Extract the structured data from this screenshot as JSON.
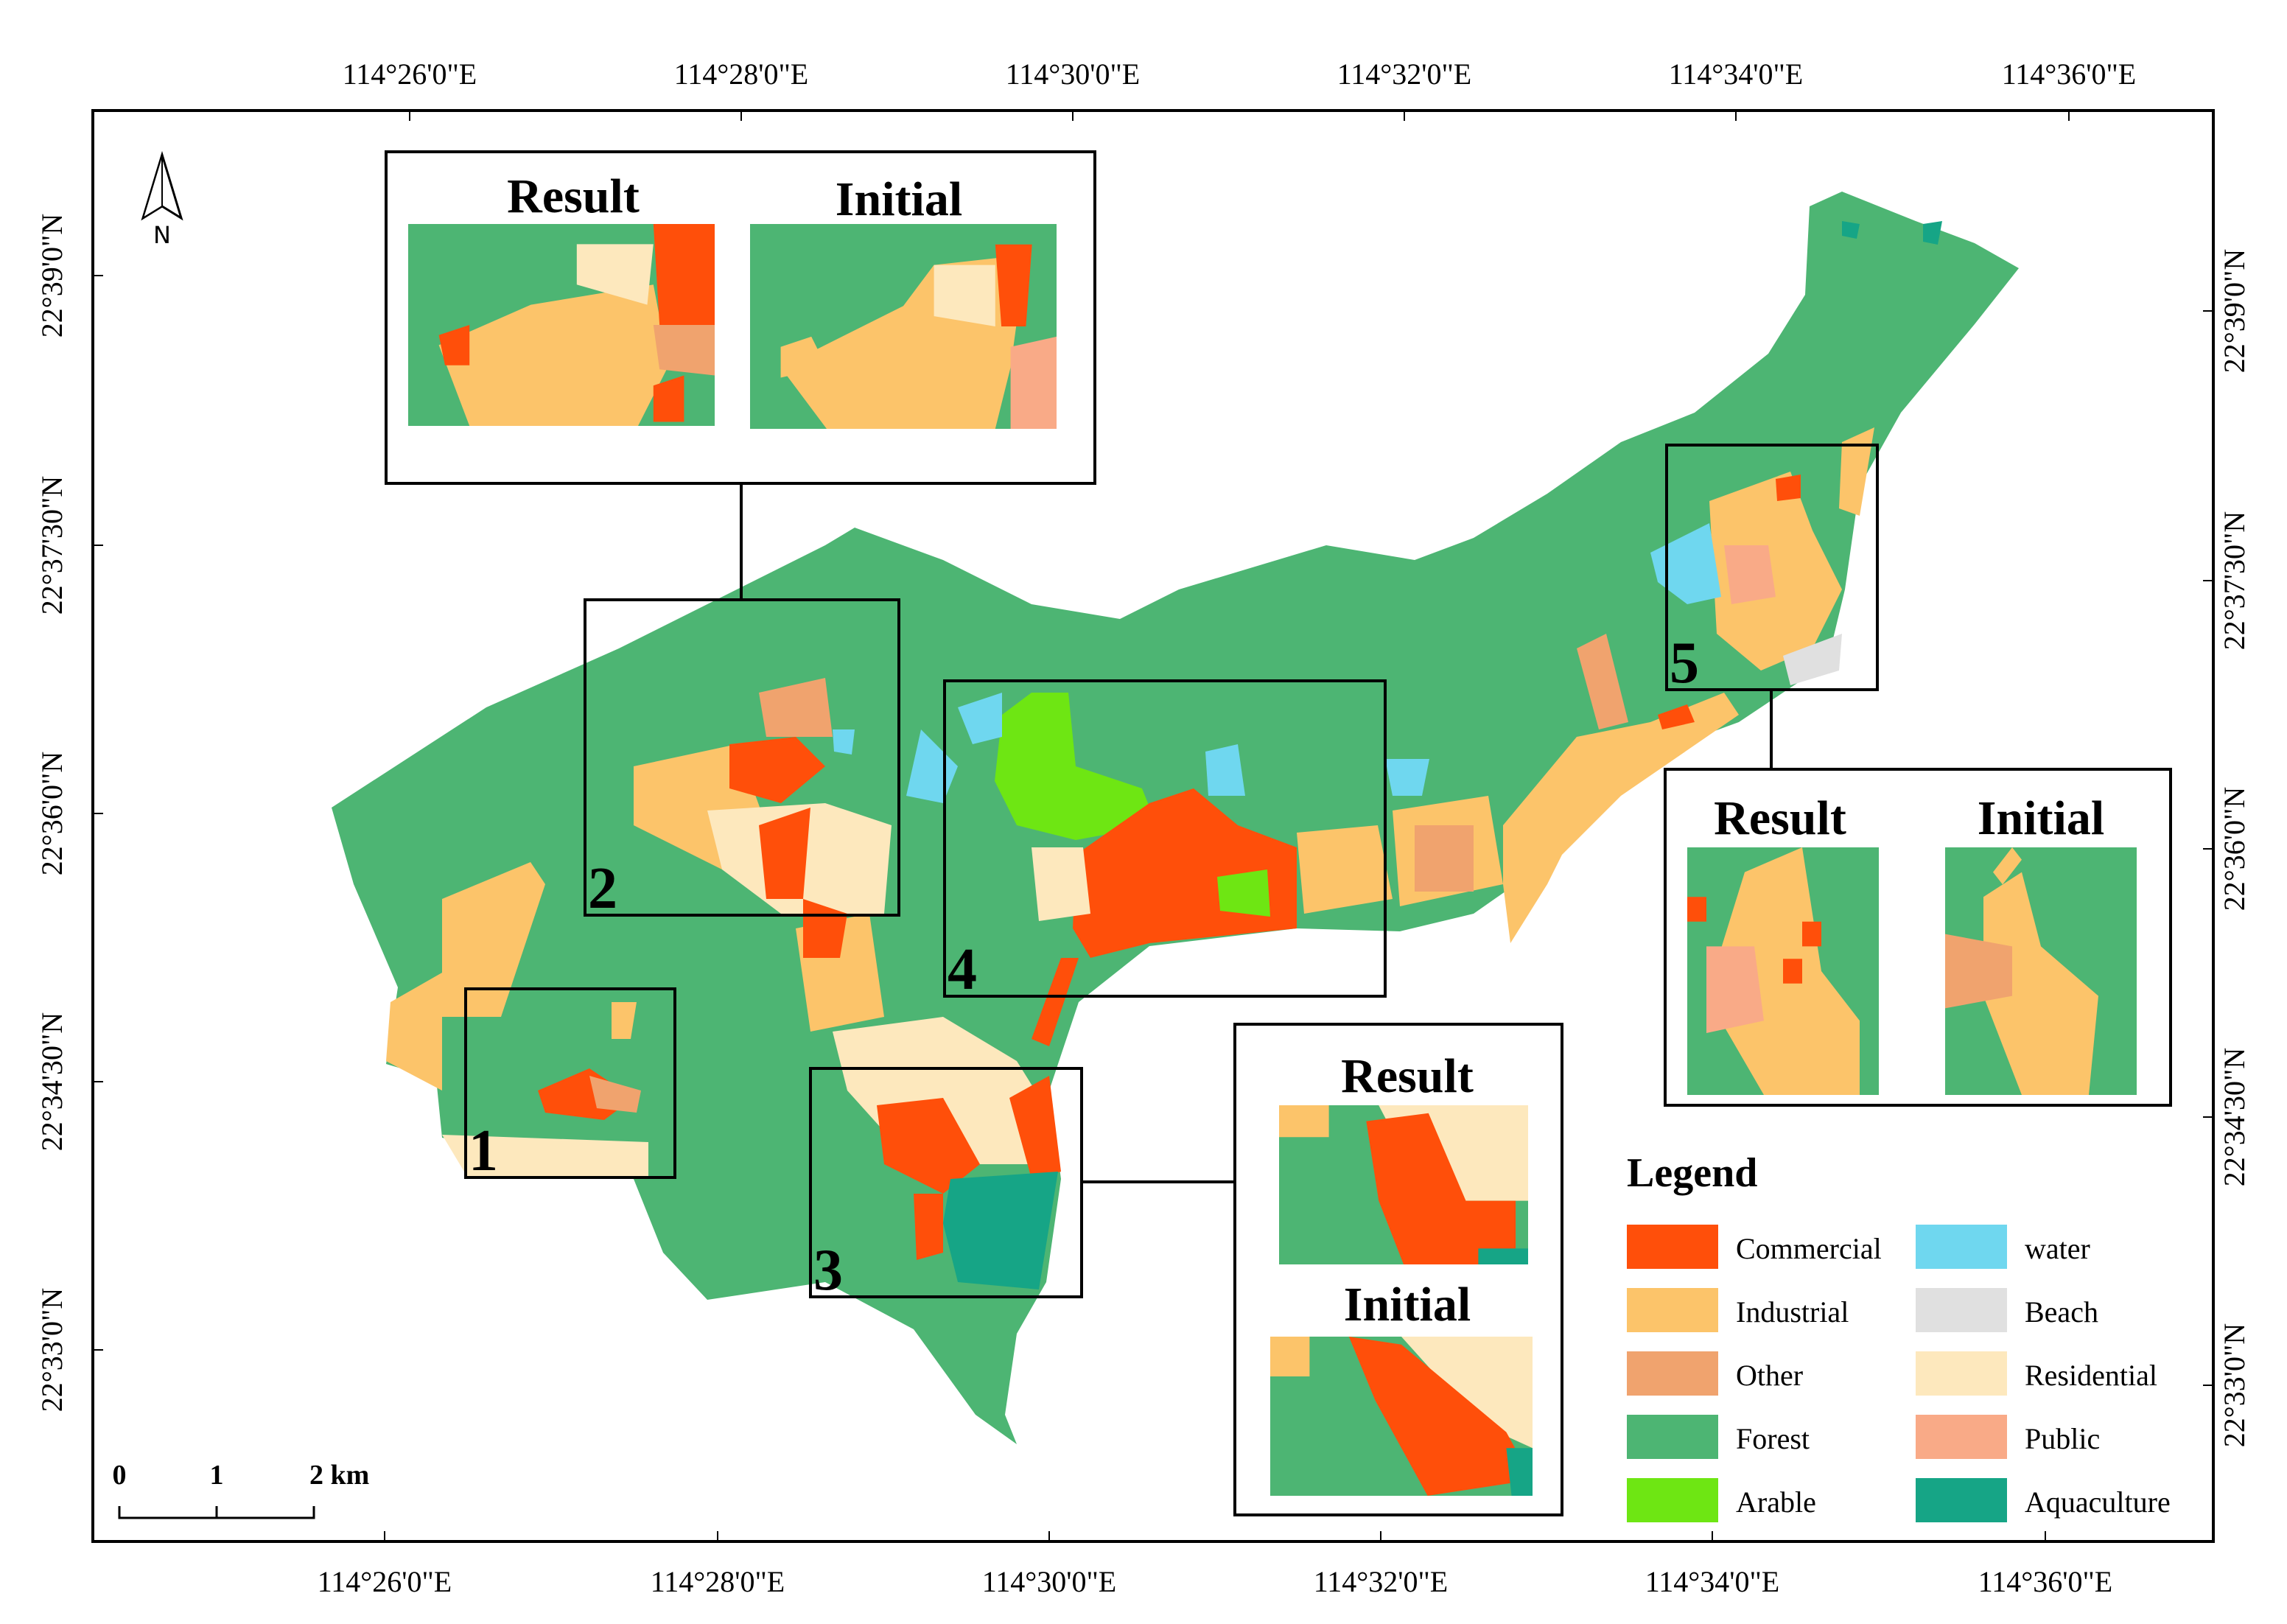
{
  "map": {
    "top_labels": [
      "114°26'0\"E",
      "114°28'0\"E",
      "114°30'0\"E",
      "114°32'0\"E",
      "114°34'0\"E",
      "114°36'0\"E"
    ],
    "bottom_labels": [
      "114°26'0\"E",
      "114°28'0\"E",
      "114°30'0\"E",
      "114°32'0\"E",
      "114°34'0\"E",
      "114°36'0\"E"
    ],
    "left_labels": [
      "22°39'0\"N",
      "22°37'30\"N",
      "22°36'0\"N",
      "22°34'30\"N",
      "22°33'0\"N"
    ],
    "right_labels": [
      "22°39'0\"N",
      "22°37'30\"N",
      "22°36'0\"N",
      "22°34'30\"N",
      "22°33'0\"N"
    ],
    "north": "N",
    "scale_bar": [
      "0",
      "1",
      "2 km"
    ],
    "boxes": [
      "1",
      "2",
      "3",
      "4",
      "5"
    ],
    "insets": [
      [
        "Result",
        "Initial"
      ],
      [
        "Result",
        "Initial"
      ],
      [
        "Result",
        "Initial"
      ]
    ],
    "legend": {
      "title": "Legend",
      "items": [
        {
          "name": "Commercial",
          "color": "#ff4f0a"
        },
        {
          "name": "Industrial",
          "color": "#fcc46a"
        },
        {
          "name": "Other",
          "color": "#f0a36e"
        },
        {
          "name": "Forest",
          "color": "#4db573"
        },
        {
          "name": "Arable",
          "color": "#6ee613"
        },
        {
          "name": "water",
          "color": "#6fd7ef"
        },
        {
          "name": "Beach",
          "color": "#e0e0e0"
        },
        {
          "name": "Residential",
          "color": "#fde8bd"
        },
        {
          "name": "Public",
          "color": "#f9aa87"
        },
        {
          "name": "Aquaculture",
          "color": "#16a586"
        }
      ]
    }
  }
}
